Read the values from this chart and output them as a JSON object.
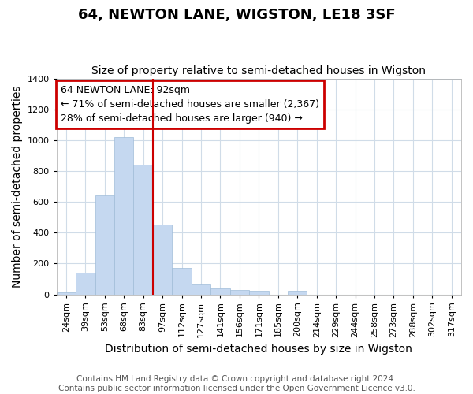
{
  "title": "64, NEWTON LANE, WIGSTON, LE18 3SF",
  "subtitle": "Size of property relative to semi-detached houses in Wigston",
  "xlabel": "Distribution of semi-detached houses by size in Wigston",
  "ylabel": "Number of semi-detached properties",
  "footer_line1": "Contains HM Land Registry data © Crown copyright and database right 2024.",
  "footer_line2": "Contains public sector information licensed under the Open Government Licence v3.0.",
  "bin_labels": [
    "24sqm",
    "39sqm",
    "53sqm",
    "68sqm",
    "83sqm",
    "97sqm",
    "112sqm",
    "127sqm",
    "141sqm",
    "156sqm",
    "171sqm",
    "185sqm",
    "200sqm",
    "214sqm",
    "229sqm",
    "244sqm",
    "258sqm",
    "273sqm",
    "288sqm",
    "302sqm",
    "317sqm"
  ],
  "bar_values": [
    15,
    140,
    640,
    1020,
    840,
    450,
    170,
    65,
    40,
    30,
    25,
    0,
    25,
    0,
    0,
    0,
    0,
    0,
    0,
    0,
    0
  ],
  "bar_color": "#c5d8f0",
  "bar_edgecolor": "#c5d8f0",
  "vline_x_index": 5,
  "property_label": "64 NEWTON LANE: 92sqm",
  "pct_smaller": 71,
  "n_smaller": 2367,
  "pct_larger": 28,
  "n_larger": 940,
  "annotation_box_facecolor": "#ffffff",
  "annotation_box_edgecolor": "#cc0000",
  "vline_color": "#cc0000",
  "ylim": [
    0,
    1400
  ],
  "yticks": [
    0,
    200,
    400,
    600,
    800,
    1000,
    1200,
    1400
  ],
  "background_color": "#ffffff",
  "grid_color": "#d0dce8",
  "title_fontsize": 13,
  "subtitle_fontsize": 10,
  "axis_label_fontsize": 10,
  "tick_fontsize": 8,
  "annotation_fontsize": 9,
  "footer_fontsize": 7.5
}
